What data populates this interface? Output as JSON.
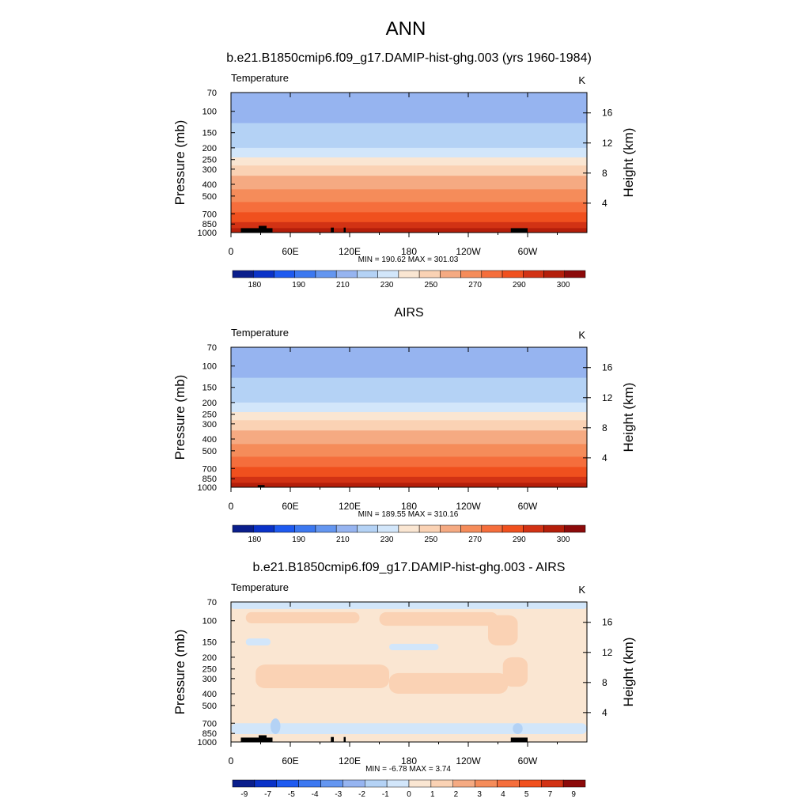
{
  "figure": {
    "title": "ANN",
    "height_axis_label": "Height (km)",
    "height_ticks": [
      "4",
      "8",
      "12",
      "16"
    ]
  },
  "chart_data": [
    {
      "type": "heatmap",
      "title": "b.e21.B1850cmip6.f09_g17.DAMIP-hist-ghg.003 (yrs 1960-1984)",
      "variable_label": "Temperature",
      "units": "K",
      "ylabel": "Pressure (mb)",
      "y_ticks": [
        70,
        100,
        150,
        200,
        250,
        300,
        400,
        500,
        700,
        850,
        1000
      ],
      "y_scale": "log",
      "ylim": [
        1000,
        70
      ],
      "x_ticks": [
        "0",
        "60E",
        "120E",
        "180",
        "120W",
        "60W"
      ],
      "xlim": [
        0,
        360
      ],
      "stats": "MIN = 190.62  MAX = 301.03",
      "colorbar_labels": [
        "180",
        "190",
        "210",
        "230",
        "250",
        "270",
        "290",
        "300"
      ],
      "colorbar_colors": [
        "#0a1e8c",
        "#0a32c8",
        "#1e5af0",
        "#3c78f0",
        "#6496f0",
        "#96b4f0",
        "#b4d2f5",
        "#d2e6fa",
        "#fae6d2",
        "#fad2b4",
        "#f5aa82",
        "#f58c5a",
        "#f56e3c",
        "#f0501e",
        "#d23214",
        "#b41e0a",
        "#8c0a0a"
      ],
      "pressure_bands_k": [
        {
          "p_top": 70,
          "p_bot": 125,
          "value": 205
        },
        {
          "p_top": 125,
          "p_bot": 160,
          "value": 212
        },
        {
          "p_top": 160,
          "p_bot": 200,
          "value": 218
        },
        {
          "p_top": 200,
          "p_bot": 240,
          "value": 225
        },
        {
          "p_top": 240,
          "p_bot": 280,
          "value": 232
        },
        {
          "p_top": 280,
          "p_bot": 340,
          "value": 245
        },
        {
          "p_top": 340,
          "p_bot": 440,
          "value": 252
        },
        {
          "p_top": 440,
          "p_bot": 560,
          "value": 262
        },
        {
          "p_top": 560,
          "p_bot": 680,
          "value": 272
        },
        {
          "p_top": 680,
          "p_bot": 820,
          "value": 282
        },
        {
          "p_top": 820,
          "p_bot": 920,
          "value": 290
        },
        {
          "p_top": 920,
          "p_bot": 1000,
          "value": 296
        }
      ]
    },
    {
      "type": "heatmap",
      "title": "AIRS",
      "variable_label": "Temperature",
      "units": "K",
      "ylabel": "Pressure (mb)",
      "y_ticks": [
        70,
        100,
        150,
        200,
        250,
        300,
        400,
        500,
        700,
        850,
        1000
      ],
      "y_scale": "log",
      "ylim": [
        1000,
        70
      ],
      "x_ticks": [
        "0",
        "60E",
        "120E",
        "180",
        "120W",
        "60W"
      ],
      "xlim": [
        0,
        360
      ],
      "stats": "MIN = 189.55  MAX = 310.16",
      "colorbar_labels": [
        "180",
        "190",
        "210",
        "230",
        "250",
        "270",
        "290",
        "300"
      ],
      "colorbar_colors": [
        "#0a1e8c",
        "#0a32c8",
        "#1e5af0",
        "#3c78f0",
        "#6496f0",
        "#96b4f0",
        "#b4d2f5",
        "#d2e6fa",
        "#fae6d2",
        "#fad2b4",
        "#f5aa82",
        "#f58c5a",
        "#f56e3c",
        "#f0501e",
        "#d23214",
        "#b41e0a",
        "#8c0a0a"
      ],
      "pressure_bands_k": [
        {
          "p_top": 70,
          "p_bot": 125,
          "value": 205
        },
        {
          "p_top": 125,
          "p_bot": 160,
          "value": 212
        },
        {
          "p_top": 160,
          "p_bot": 200,
          "value": 218
        },
        {
          "p_top": 200,
          "p_bot": 240,
          "value": 225
        },
        {
          "p_top": 240,
          "p_bot": 280,
          "value": 232
        },
        {
          "p_top": 280,
          "p_bot": 340,
          "value": 245
        },
        {
          "p_top": 340,
          "p_bot": 440,
          "value": 252
        },
        {
          "p_top": 440,
          "p_bot": 560,
          "value": 262
        },
        {
          "p_top": 560,
          "p_bot": 680,
          "value": 272
        },
        {
          "p_top": 680,
          "p_bot": 820,
          "value": 282
        },
        {
          "p_top": 820,
          "p_bot": 920,
          "value": 290
        },
        {
          "p_top": 920,
          "p_bot": 1000,
          "value": 296
        }
      ]
    },
    {
      "type": "heatmap",
      "title": "b.e21.B1850cmip6.f09_g17.DAMIP-hist-ghg.003 - AIRS",
      "variable_label": "Temperature",
      "units": "K",
      "ylabel": "Pressure (mb)",
      "y_ticks": [
        70,
        100,
        150,
        200,
        250,
        300,
        400,
        500,
        700,
        850,
        1000
      ],
      "y_scale": "log",
      "ylim": [
        1000,
        70
      ],
      "x_ticks": [
        "0",
        "60E",
        "120E",
        "180",
        "120W",
        "60W"
      ],
      "xlim": [
        0,
        360
      ],
      "stats": "MIN = -6.78  MAX =   3.74",
      "colorbar_labels": [
        "-9",
        "-7",
        "-5",
        "-4",
        "-3",
        "-2",
        "-1",
        "0",
        "1",
        "2",
        "3",
        "4",
        "5",
        "7",
        "9"
      ],
      "colorbar_colors": [
        "#0a1e8c",
        "#0a32c8",
        "#1e5af0",
        "#3c78f0",
        "#6496f0",
        "#96b4f0",
        "#b4d2f5",
        "#d2e6fa",
        "#fae6d2",
        "#fad2b4",
        "#f5aa82",
        "#f58c5a",
        "#f56e3c",
        "#f0501e",
        "#d23214",
        "#8c0a0a"
      ],
      "background_value": 0.5,
      "regions_k": [
        {
          "lon": [
            0,
            360
          ],
          "p": [
            70,
            80
          ],
          "value": -0.5
        },
        {
          "lon": [
            15,
            130
          ],
          "p": [
            85,
            105
          ],
          "value": 1.5
        },
        {
          "lon": [
            150,
            270
          ],
          "p": [
            85,
            110
          ],
          "value": 1.5
        },
        {
          "lon": [
            260,
            290
          ],
          "p": [
            90,
            160
          ],
          "value": 1.5
        },
        {
          "lon": [
            15,
            40
          ],
          "p": [
            140,
            160
          ],
          "value": -0.5
        },
        {
          "lon": [
            160,
            210
          ],
          "p": [
            155,
            175
          ],
          "value": -0.5
        },
        {
          "lon": [
            25,
            160
          ],
          "p": [
            230,
            360
          ],
          "value": 1.5
        },
        {
          "lon": [
            160,
            280
          ],
          "p": [
            270,
            400
          ],
          "value": 1.5
        },
        {
          "lon": [
            275,
            300
          ],
          "p": [
            200,
            350
          ],
          "value": 1.5
        },
        {
          "lon": [
            0,
            360
          ],
          "p": [
            700,
            860
          ],
          "value": -0.5
        },
        {
          "lon": [
            40,
            50
          ],
          "p": [
            640,
            860
          ],
          "value": -1.5
        },
        {
          "lon": [
            285,
            295
          ],
          "p": [
            700,
            860
          ],
          "value": -1.5
        }
      ]
    }
  ]
}
